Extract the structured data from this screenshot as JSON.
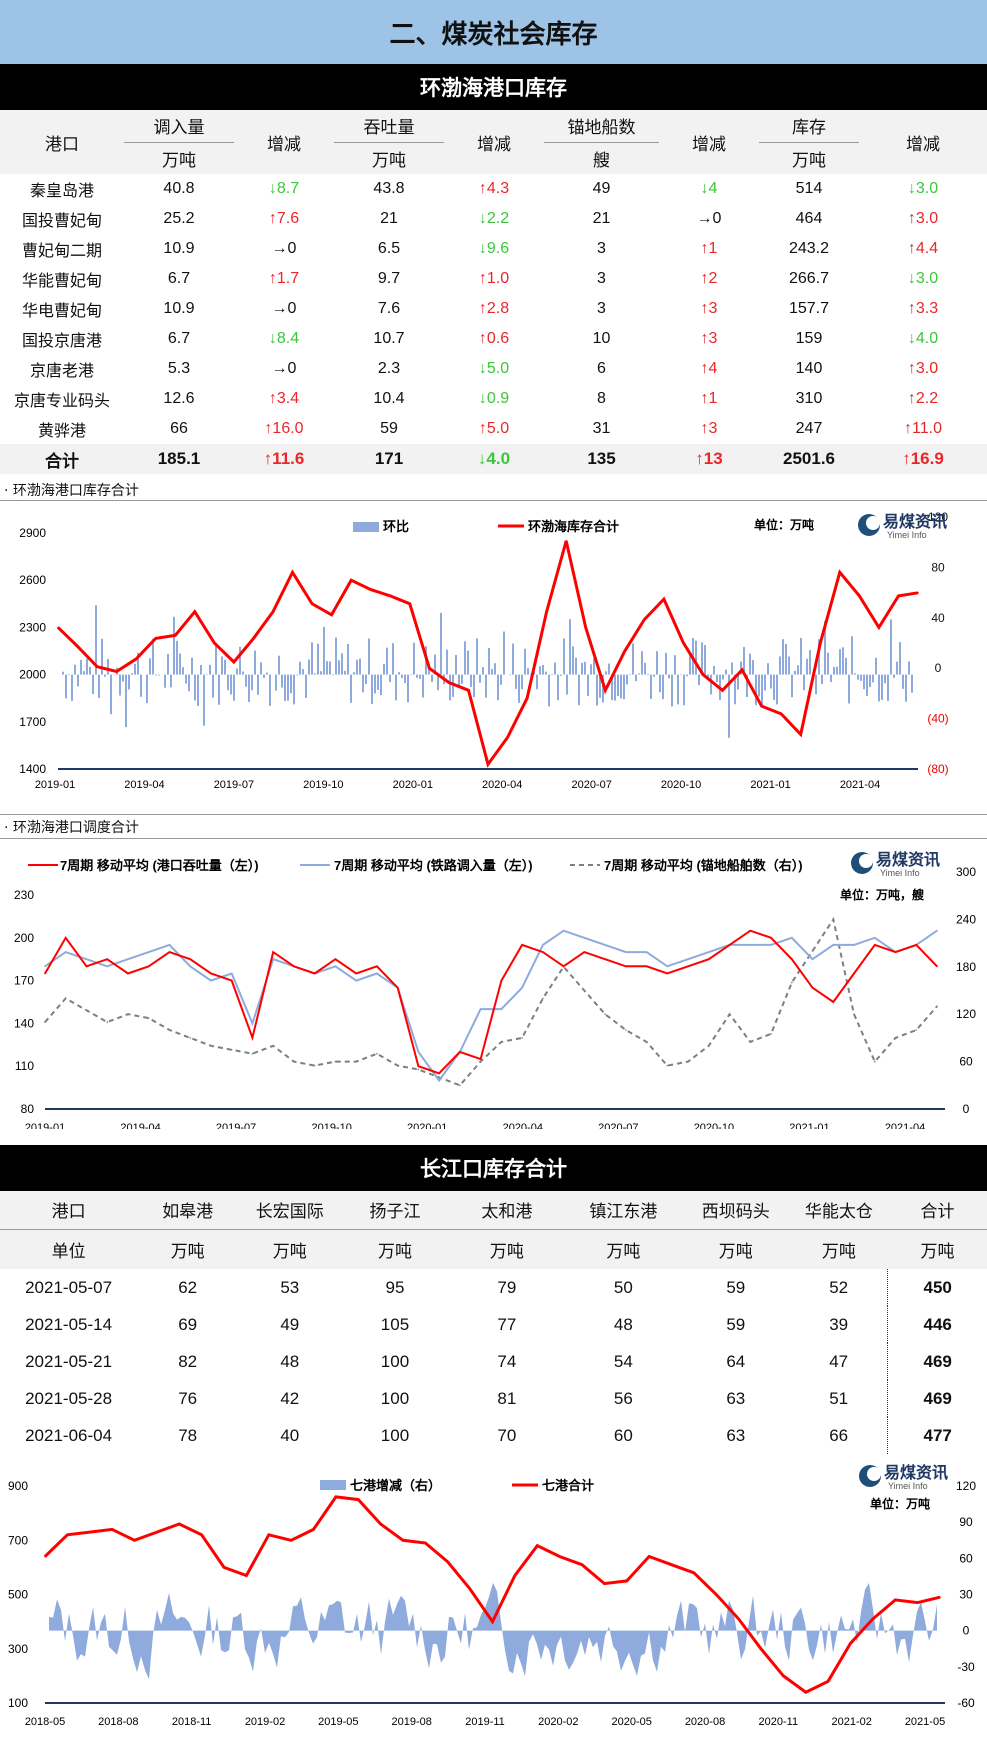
{
  "page_title": "二、煤炭社会库存",
  "bohai": {
    "heading": "环渤海港口库存",
    "headers": {
      "port": "港口",
      "in": "调入量",
      "change": "增减",
      "through": "吞吐量",
      "anchor": "锚地船数",
      "stock": "库存",
      "unit_wt": "万吨",
      "unit_ship": "艘"
    },
    "rows": [
      {
        "port": "秦皇岛港",
        "in": "40.8",
        "in_d": "↓8.7",
        "in_dir": "dn",
        "th": "43.8",
        "th_d": "↑4.3",
        "th_dir": "up",
        "an": "49",
        "an_d": "↓4",
        "an_dir": "dn",
        "st": "514",
        "st_d": "↓3.0",
        "st_dir": "dn"
      },
      {
        "port": "国投曹妃甸",
        "in": "25.2",
        "in_d": "↑7.6",
        "in_dir": "up",
        "th": "21",
        "th_d": "↓2.2",
        "th_dir": "dn",
        "an": "21",
        "an_d": "→0",
        "an_dir": "eq",
        "st": "464",
        "st_d": "↑3.0",
        "st_dir": "up"
      },
      {
        "port": "曹妃甸二期",
        "in": "10.9",
        "in_d": "→0",
        "in_dir": "eq",
        "th": "6.5",
        "th_d": "↓9.6",
        "th_dir": "dn",
        "an": "3",
        "an_d": "↑1",
        "an_dir": "up",
        "st": "243.2",
        "st_d": "↑4.4",
        "st_dir": "up"
      },
      {
        "port": "华能曹妃甸",
        "in": "6.7",
        "in_d": "↑1.7",
        "in_dir": "up",
        "th": "9.7",
        "th_d": "↑1.0",
        "th_dir": "up",
        "an": "3",
        "an_d": "↑2",
        "an_dir": "up",
        "st": "266.7",
        "st_d": "↓3.0",
        "st_dir": "dn"
      },
      {
        "port": "华电曹妃甸",
        "in": "10.9",
        "in_d": "→0",
        "in_dir": "eq",
        "th": "7.6",
        "th_d": "↑2.8",
        "th_dir": "up",
        "an": "3",
        "an_d": "↑3",
        "an_dir": "up",
        "st": "157.7",
        "st_d": "↑3.3",
        "st_dir": "up"
      },
      {
        "port": "国投京唐港",
        "in": "6.7",
        "in_d": "↓8.4",
        "in_dir": "dn",
        "th": "10.7",
        "th_d": "↑0.6",
        "th_dir": "up",
        "an": "10",
        "an_d": "↑3",
        "an_dir": "up",
        "st": "159",
        "st_d": "↓4.0",
        "st_dir": "dn"
      },
      {
        "port": "京唐老港",
        "in": "5.3",
        "in_d": "→0",
        "in_dir": "eq",
        "th": "2.3",
        "th_d": "↓5.0",
        "th_dir": "dn",
        "an": "6",
        "an_d": "↑4",
        "an_dir": "up",
        "st": "140",
        "st_d": "↑3.0",
        "st_dir": "up"
      },
      {
        "port": "京唐专业码头",
        "in": "12.6",
        "in_d": "↑3.4",
        "in_dir": "up",
        "th": "10.4",
        "th_d": "↓0.9",
        "th_dir": "dn",
        "an": "8",
        "an_d": "↑1",
        "an_dir": "up",
        "st": "310",
        "st_d": "↑2.2",
        "st_dir": "up"
      },
      {
        "port": "黄骅港",
        "in": "66",
        "in_d": "↑16.0",
        "in_dir": "up",
        "th": "59",
        "th_d": "↑5.0",
        "th_dir": "up",
        "an": "31",
        "an_d": "↑3",
        "an_dir": "up",
        "st": "247",
        "st_d": "↑11.0",
        "st_dir": "up"
      }
    ],
    "total": {
      "port": "合计",
      "in": "185.1",
      "in_d": "↑11.6",
      "in_dir": "up",
      "th": "171",
      "th_d": "↓4.0",
      "th_dir": "dn",
      "an": "135",
      "an_d": "↑13",
      "an_dir": "up",
      "st": "2501.6",
      "st_d": "↑16.9",
      "st_dir": "up"
    }
  },
  "chart1_label": "· 环渤海港口库存合计",
  "chart2_label": "· 环渤海港口调度合计",
  "logo": {
    "cn": "易煤资讯",
    "en": "Yimei Info"
  },
  "chart_data": [
    {
      "type": "line",
      "legend": [
        "环比",
        "环渤海库存合计"
      ],
      "unit": "单位：万吨",
      "x_ticks": [
        "2019-01",
        "2019-04",
        "2019-07",
        "2019-10",
        "2020-01",
        "2020-04",
        "2020-07",
        "2020-10",
        "2021-01",
        "2021-04"
      ],
      "y_left_ticks": [
        "2900",
        "2600",
        "2300",
        "2000",
        "1700",
        "1400"
      ],
      "y_right_ticks": [
        "120",
        "80",
        "40",
        "0",
        "(40)",
        "(80)"
      ],
      "ylim_left": [
        1400,
        2900
      ],
      "ylim_right": [
        -80,
        120
      ],
      "series": [
        {
          "name": "环渤海库存合计",
          "values": [
            2300,
            2180,
            2050,
            2020,
            2100,
            2230,
            2250,
            2400,
            2200,
            2080,
            2230,
            2400,
            2650,
            2450,
            2380,
            2600,
            2540,
            2500,
            2450,
            2040,
            1950,
            1900,
            1430,
            1600,
            1850,
            2400,
            2850,
            2300,
            1900,
            2150,
            2350,
            2480,
            2200,
            2000,
            1900,
            2030,
            1800,
            1750,
            1620,
            2200,
            2650,
            2500,
            2300,
            2500,
            2520
          ]
        }
      ]
    },
    {
      "type": "line",
      "legend": [
        "7周期 移动平均 (港口吞吐量（左）)",
        "7周期 移动平均 (铁路调入量（左）)",
        "7周期 移动平均 (锚地船舶数（右）)"
      ],
      "unit": "单位：万吨，艘",
      "x_ticks": [
        "2019-01",
        "2019-04",
        "2019-07",
        "2019-10",
        "2020-01",
        "2020-04",
        "2020-07",
        "2020-10",
        "2021-01",
        "2021-04"
      ],
      "y_left_ticks": [
        "230",
        "200",
        "170",
        "140",
        "110",
        "80"
      ],
      "y_right_ticks": [
        "300",
        "240",
        "180",
        "120",
        "60",
        "0"
      ],
      "ylim_left": [
        80,
        230
      ],
      "ylim_right": [
        0,
        300
      ],
      "series": [
        {
          "name": "7周期 移动平均 (港口吞吐量（左）)",
          "values": [
            175,
            200,
            180,
            185,
            175,
            180,
            190,
            185,
            175,
            170,
            130,
            190,
            180,
            175,
            185,
            175,
            180,
            165,
            110,
            105,
            120,
            115,
            170,
            195,
            190,
            180,
            190,
            185,
            180,
            180,
            175,
            180,
            185,
            195,
            205,
            200,
            185,
            165,
            155,
            175,
            195,
            190,
            195,
            180
          ]
        },
        {
          "name": "7周期 移动平均 (铁路调入量（左）)",
          "values": [
            180,
            190,
            185,
            180,
            185,
            190,
            195,
            180,
            170,
            175,
            140,
            185,
            180,
            175,
            180,
            170,
            175,
            165,
            120,
            100,
            120,
            150,
            150,
            165,
            195,
            205,
            200,
            195,
            190,
            190,
            180,
            185,
            190,
            195,
            195,
            195,
            200,
            185,
            195,
            195,
            200,
            190,
            195,
            205
          ]
        },
        {
          "name": "7周期 移动平均 (锚地船舶数（右）)",
          "values": [
            110,
            140,
            125,
            110,
            120,
            115,
            100,
            90,
            80,
            75,
            70,
            80,
            60,
            55,
            60,
            60,
            70,
            55,
            50,
            40,
            30,
            60,
            85,
            90,
            140,
            180,
            150,
            120,
            100,
            85,
            55,
            60,
            80,
            120,
            85,
            95,
            160,
            200,
            240,
            120,
            60,
            90,
            100,
            130
          ]
        }
      ]
    },
    {
      "type": "line",
      "legend": [
        "七港增减（右）",
        "七港合计"
      ],
      "unit": "单位：万吨",
      "x_ticks": [
        "2018-05",
        "2018-08",
        "2018-11",
        "2019-02",
        "2019-05",
        "2019-08",
        "2019-11",
        "2020-02",
        "2020-05",
        "2020-08",
        "2020-11",
        "2021-02",
        "2021-05"
      ],
      "y_left_ticks": [
        "900",
        "700",
        "500",
        "300",
        "100"
      ],
      "y_right_ticks": [
        "120",
        "90",
        "60",
        "30",
        "0",
        "-30",
        "-60"
      ],
      "ylim_left": [
        100,
        900
      ],
      "ylim_right": [
        -60,
        120
      ],
      "series": [
        {
          "name": "七港合计",
          "values": [
            640,
            720,
            730,
            740,
            700,
            730,
            760,
            720,
            600,
            570,
            720,
            700,
            740,
            860,
            850,
            760,
            700,
            690,
            620,
            520,
            400,
            570,
            680,
            640,
            610,
            540,
            550,
            640,
            610,
            580,
            500,
            410,
            300,
            200,
            140,
            180,
            320,
            410,
            480,
            470,
            490
          ]
        }
      ]
    }
  ],
  "yangtze": {
    "heading": "长江口库存合计",
    "headers": [
      "港口",
      "如皋港",
      "长宏国际",
      "扬子江",
      "太和港",
      "镇江东港",
      "西坝码头",
      "华能太仓",
      "合计"
    ],
    "units": [
      "单位",
      "万吨",
      "万吨",
      "万吨",
      "万吨",
      "万吨",
      "万吨",
      "万吨",
      "万吨"
    ],
    "rows": [
      [
        "2021-05-07",
        "62",
        "53",
        "95",
        "79",
        "50",
        "59",
        "52",
        "450"
      ],
      [
        "2021-05-14",
        "69",
        "49",
        "105",
        "77",
        "48",
        "59",
        "39",
        "446"
      ],
      [
        "2021-05-21",
        "82",
        "48",
        "100",
        "74",
        "54",
        "64",
        "47",
        "469"
      ],
      [
        "2021-05-28",
        "76",
        "42",
        "100",
        "81",
        "56",
        "63",
        "51",
        "469"
      ],
      [
        "2021-06-04",
        "78",
        "40",
        "100",
        "70",
        "60",
        "63",
        "66",
        "477"
      ]
    ]
  },
  "colors": {
    "red": "#ff0000",
    "bar": "#8faadc",
    "up": "#e8262b",
    "down": "#3cc63c",
    "title_bg": "#9dc3e6"
  }
}
